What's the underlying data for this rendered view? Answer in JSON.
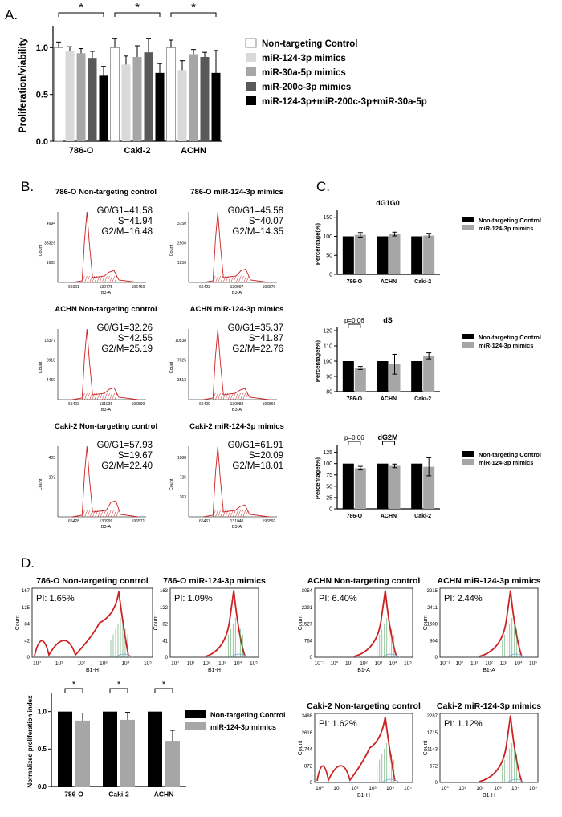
{
  "panels": {
    "A": "A.",
    "B": "B.",
    "C": "C.",
    "D": "D."
  },
  "colors": {
    "nt_a": "#ffffff",
    "m124_a": "#d9d9d9",
    "m30_a": "#a6a6a6",
    "m200_a": "#595959",
    "combo_a": "#000000",
    "black": "#000000",
    "gray": "#a6a6a6",
    "hist_red": "#cc2222",
    "fit_green": "#2e8b3c",
    "fit_blue": "#6fa8dc"
  },
  "chart_a": {
    "type": "bar",
    "ylabel": "Proliferation/viability",
    "ylim": [
      0,
      1.2
    ],
    "yticks": [
      "0.0",
      "0.5",
      "1.0"
    ],
    "categories": [
      "786-O",
      "Caki-2",
      "ACHN"
    ],
    "series": [
      {
        "name": "Non-targeting Control",
        "values": [
          1.0,
          1.0,
          1.0
        ],
        "err": [
          0.06,
          0.1,
          0.08
        ]
      },
      {
        "name": "miR-124-3p mimics",
        "values": [
          0.96,
          0.82,
          0.76
        ],
        "err": [
          0.05,
          0.09,
          0.1
        ]
      },
      {
        "name": "miR-30a-5p mimics",
        "values": [
          0.94,
          0.9,
          0.93
        ],
        "err": [
          0.05,
          0.12,
          0.05
        ]
      },
      {
        "name": "miR-200c-3p mimics",
        "values": [
          0.89,
          0.95,
          0.9
        ],
        "err": [
          0.07,
          0.15,
          0.05
        ]
      },
      {
        "name": "miR-124-3p+miR-200c-3p+miR-30a-5p",
        "values": [
          0.7,
          0.73,
          0.73
        ],
        "err": [
          0.1,
          0.1,
          0.24
        ]
      }
    ],
    "sig": [
      "*",
      "*",
      "*"
    ]
  },
  "flow_b": [
    {
      "title": "786-O Non-targeting control",
      "stats": [
        "G0/G1=41.58",
        "S=41.94",
        "G2/M=16.48"
      ],
      "yticks": [
        "4994",
        "33329",
        "1665"
      ],
      "xticks": [
        "65091",
        "130775",
        "196460"
      ],
      "xlabel": "B3-A",
      "ylabel": "Count",
      "g1": 0.33,
      "g2": 0.6,
      "h2": 0.1
    },
    {
      "title": "786-O miR-124-3p mimics",
      "stats": [
        "G0/G1=45.58",
        "S=40.07",
        "G2/M=14.35"
      ],
      "yticks": [
        "3750",
        "2500",
        "1250"
      ],
      "xticks": [
        "65423",
        "130997",
        "196570"
      ],
      "xlabel": "B3-A",
      "ylabel": "Count",
      "g1": 0.33,
      "g2": 0.61,
      "h2": 0.12
    },
    {
      "title": "ACHN Non-targeting control",
      "stats": [
        "G0/G1=32.26",
        "S=42.55",
        "G2/M=25.19"
      ],
      "yticks": [
        "13377",
        "8918",
        "4459"
      ],
      "xticks": [
        "65403",
        "131036",
        "196590"
      ],
      "xlabel": "B3-A",
      "ylabel": "Count",
      "g1": 0.33,
      "g2": 0.6,
      "h2": 0.1
    },
    {
      "title": "ACHN miR-124-3p mimics",
      "stats": [
        "G0/G1=35.37",
        "S=41.87",
        "G2/M=22.76"
      ],
      "yticks": [
        "10538",
        "7025",
        "3513"
      ],
      "xticks": [
        "65409",
        "130988",
        "196566"
      ],
      "xlabel": "B3-A",
      "ylabel": "Count",
      "g1": 0.33,
      "g2": 0.6,
      "h2": 0.09
    },
    {
      "title": "Caki-2 Non-targeting control",
      "stats": [
        "G0/G1=57.93",
        "S=19.67",
        "G2/M=22.40"
      ],
      "yticks": [
        "405",
        "203"
      ],
      "xticks": [
        "65428",
        "130999",
        "196571"
      ],
      "xlabel": "B3-A",
      "ylabel": "Count",
      "g1": 0.33,
      "g2": 0.62,
      "h2": 0.16
    },
    {
      "title": "Caki-2 miR-124-3p mimics",
      "stats": [
        "G0/G1=61.91",
        "S=20.09",
        "G2/M=18.01"
      ],
      "yticks": [
        "1088",
        "725",
        "363"
      ],
      "xticks": [
        "65467",
        "131040",
        "196592"
      ],
      "xlabel": "B3-A",
      "ylabel": "Count",
      "g1": 0.33,
      "g2": 0.6,
      "h2": 0.1
    }
  ],
  "charts_c": [
    {
      "type": "bar",
      "title": "dG1G0",
      "ylabel": "Percentage(%)",
      "yticks": [
        "0",
        "50",
        "100",
        "150"
      ],
      "ylim": [
        0,
        160
      ],
      "categories": [
        "786-O",
        "ACHN",
        "Caki-2"
      ],
      "series": [
        {
          "name": "Non-targeting Control",
          "values": [
            100,
            100,
            100
          ],
          "err": [
            0,
            0,
            0
          ]
        },
        {
          "name": "miR-124-3p mimics",
          "values": [
            104,
            106,
            102
          ],
          "err": [
            6,
            5,
            6
          ]
        }
      ],
      "sig": [
        "",
        "",
        ""
      ]
    },
    {
      "type": "bar",
      "title": "dS",
      "ylabel": "Percentage(%)",
      "yticks": [
        "80",
        "90",
        "100",
        "110",
        "120"
      ],
      "ylim": [
        80,
        120
      ],
      "categories": [
        "786-O",
        "ACHN",
        "Caki-2"
      ],
      "series": [
        {
          "name": "Non-targeting Control",
          "values": [
            100,
            100,
            100
          ],
          "err": [
            0,
            0,
            0
          ]
        },
        {
          "name": "miR-124-3p mimics",
          "values": [
            95.5,
            98,
            103.5
          ],
          "err": [
            1,
            6.5,
            2
          ]
        }
      ],
      "sig": [
        "p=0.06",
        "",
        ""
      ]
    },
    {
      "type": "bar",
      "title": "dG2M",
      "ylabel": "Percentage(%)",
      "yticks": [
        "0",
        "25",
        "50",
        "75",
        "100",
        "125"
      ],
      "ylim": [
        0,
        135
      ],
      "categories": [
        "786-O",
        "ACHN",
        "Caki-2"
      ],
      "series": [
        {
          "name": "Non-targeting Control",
          "values": [
            100,
            100,
            100
          ],
          "err": [
            0,
            0,
            0
          ]
        },
        {
          "name": "miR-124-3p mimics",
          "values": [
            90,
            95,
            93
          ],
          "err": [
            4,
            4,
            20
          ]
        }
      ],
      "sig": [
        "p=0.06",
        "*",
        ""
      ]
    }
  ],
  "flow_d": [
    {
      "title": "786-O Non-targeting control",
      "pi": "PI: 1.65%",
      "yticks": [
        "167",
        "125",
        "84",
        "42",
        "0"
      ],
      "xticks": [
        "10⁰",
        "10¹",
        "10²",
        "10³",
        "10⁴",
        "10⁵"
      ],
      "xlabel": "B1-H",
      "ylabel": "Count",
      "multi": true
    },
    {
      "title": "786-O miR-124-3p mimics",
      "pi": "PI: 1.09%",
      "yticks": [
        "163",
        "122",
        "82",
        "41",
        "0"
      ],
      "xticks": [
        "10⁰",
        "10¹",
        "10²",
        "10³",
        "10⁴",
        "10⁵"
      ],
      "xlabel": "B1-H",
      "ylabel": "Count",
      "multi": false
    },
    {
      "title": "ACHN Non-targeting control",
      "pi": "PI: 6.40%",
      "yticks": [
        "3054",
        "2291",
        "1527",
        "764",
        "0"
      ],
      "xticks": [
        "10⁻¹",
        "10⁰",
        "10¹",
        "10²",
        "10³",
        "10⁴",
        "10⁵"
      ],
      "xlabel": "B1-A",
      "ylabel": "Count",
      "multi": false
    },
    {
      "title": "ACHN miR-124-3p mimics",
      "pi": "PI: 2.44%",
      "yticks": [
        "3215",
        "2411",
        "1608",
        "804",
        "0"
      ],
      "xticks": [
        "10⁻¹",
        "10⁰",
        "10¹",
        "10²",
        "10³",
        "10⁴",
        "10⁵"
      ],
      "xlabel": "B1-A",
      "ylabel": "Count",
      "multi": false
    },
    {
      "title": "Caki-2 Non-targeting control",
      "pi": "PI: 1.62%",
      "yticks": [
        "3488",
        "2616",
        "1744",
        "872",
        "0"
      ],
      "xticks": [
        "10⁰",
        "10¹",
        "10²",
        "10³",
        "10⁴",
        "10⁵"
      ],
      "xlabel": "B1-H",
      "ylabel": "Count",
      "multi": true
    },
    {
      "title": "Caki-2 miR-124-3p mimics",
      "pi": "PI: 1.12%",
      "yticks": [
        "2287",
        "1715",
        "1143",
        "572",
        "0"
      ],
      "xticks": [
        "10⁰",
        "10¹",
        "10²",
        "10³",
        "10⁴",
        "10⁵"
      ],
      "xlabel": "B1-H",
      "ylabel": "Count",
      "multi": false
    }
  ],
  "chart_d": {
    "type": "bar",
    "ylabel": "Normalized proliferation index",
    "yticks": [
      "0.0",
      "0.5",
      "1.0"
    ],
    "ylim": [
      0,
      1.2
    ],
    "categories": [
      "786-O",
      "Caki-2",
      "ACHN"
    ],
    "series": [
      {
        "name": "Non-targeting Control",
        "values": [
          1.0,
          1.0,
          1.0
        ],
        "err": [
          0,
          0,
          0
        ]
      },
      {
        "name": "miR-124-3p mimics",
        "values": [
          0.88,
          0.89,
          0.61
        ],
        "err": [
          0.1,
          0.1,
          0.14
        ]
      }
    ],
    "sig": [
      "*",
      "*",
      "*"
    ]
  }
}
